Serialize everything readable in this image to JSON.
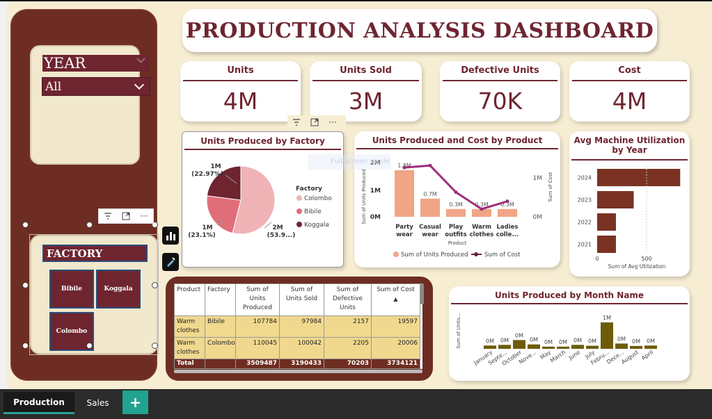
{
  "dashboard": {
    "title": "PRODUCTION ANALYSIS DASHBOARD"
  },
  "slicers": {
    "year": {
      "title": "YEAR",
      "selected": "All"
    },
    "factory": {
      "title": "FACTORY",
      "options": [
        "Bibile",
        "Koggala",
        "Colombo"
      ]
    }
  },
  "kpis": [
    {
      "label": "Units",
      "value": "4M"
    },
    {
      "label": "Units Sold",
      "value": "3M"
    },
    {
      "label": "Defective Units",
      "value": "70K"
    },
    {
      "label": "Cost",
      "value": "4M"
    }
  ],
  "toolbar_icons": [
    "filter-icon",
    "focus-mode-icon",
    "more-options-icon"
  ],
  "tooltip": {
    "fullscreen": "Full screen mode"
  },
  "pie": {
    "title": "Units Produced by Factory",
    "legend_title": "Factory",
    "labels": [
      {
        "text": "1M",
        "sub": "(22.97%)"
      },
      {
        "text": "1M",
        "sub": "(23.1%)"
      },
      {
        "text": "2M",
        "sub": "(53.9...)"
      }
    ]
  },
  "combo": {
    "title": "Units Produced and Cost by Product",
    "y_left_title": "Sum of Units Produced",
    "y_right_title": "Sum of Cost",
    "y_left_ticks": [
      "2M",
      "1M",
      "0M"
    ],
    "y_right_ticks": [
      "1M",
      "0M"
    ],
    "x_title": "Product",
    "legend": [
      "Sum of Units Produced",
      "Sum of Cost"
    ]
  },
  "util": {
    "title": "Avg Machine Utilization by Year",
    "x_title": "Sum of Avg Utilization",
    "x_ticks": [
      "0",
      "500"
    ]
  },
  "monthly": {
    "title": "Units Produced by Month Name",
    "y_title": "Sum of Units..."
  },
  "table": {
    "headers": [
      "Product",
      "Factory",
      "Sum of Units Produced",
      "Sum of Units Sold",
      "Sum of Defective Units",
      "Sum of Cost"
    ],
    "rows": [
      [
        "Warm clothes",
        "Bibile",
        "107784",
        "97984",
        "2157",
        "19597"
      ],
      [
        "Warm clothes",
        "Colombo",
        "110045",
        "100042",
        "2205",
        "20006"
      ]
    ],
    "total": [
      "Total",
      "",
      "3509487",
      "3190433",
      "70203",
      "3734121"
    ]
  },
  "tabs": {
    "production": "Production",
    "sales": "Sales",
    "add": "+"
  },
  "chart_data": [
    {
      "type": "pie",
      "title": "Units Produced by Factory",
      "legend_title": "Factory",
      "slices": [
        {
          "name": "Colombo",
          "value": 53.93,
          "label": "2M",
          "color": "#f0b3b6"
        },
        {
          "name": "Bibile",
          "value": 23.1,
          "label": "1M",
          "color": "#e06e78"
        },
        {
          "name": "Koggala",
          "value": 22.97,
          "label": "1M",
          "color": "#6e2530"
        }
      ]
    },
    {
      "type": "bar",
      "title": "Units Produced and Cost by Product",
      "categories": [
        "Party wear",
        "Casual wear",
        "Play outfits",
        "Warm clothes",
        "Ladies colle..."
      ],
      "series": [
        {
          "name": "Sum of Units Produced",
          "type": "bar",
          "values": [
            1.8,
            0.7,
            0.3,
            0.3,
            0.3
          ],
          "labels": [
            "1.8M",
            "0.7M",
            "0.3M",
            "0.3M",
            "0.3M"
          ],
          "color": "#f0a586"
        },
        {
          "name": "Sum of Cost",
          "type": "line",
          "values": [
            1.9,
            1.98,
            0.95,
            0.3,
            0.6
          ],
          "color": "#9c2f7a"
        }
      ],
      "xlabel": "Product",
      "ylabel": "Sum of Units Produced",
      "y2label": "Sum of Cost",
      "ylim": [
        0,
        2.2
      ]
    },
    {
      "type": "bar",
      "orientation": "horizontal",
      "title": "Avg Machine Utilization by Year",
      "categories": [
        "2024",
        "2023",
        "2022",
        "2021"
      ],
      "values": [
        840,
        370,
        190,
        190
      ],
      "xlabel": "Sum of Avg Utilization",
      "xlim": [
        0,
        1000
      ],
      "color": "#7a3322"
    },
    {
      "type": "bar",
      "title": "Units Produced by Month Name",
      "categories": [
        "January",
        "Septe...",
        "October",
        "Nove...",
        "May",
        "March",
        "June",
        "July",
        "Febru...",
        "Dece...",
        "August",
        "April"
      ],
      "values": [
        0.15,
        0.18,
        0.4,
        0.2,
        0.1,
        0.1,
        0.18,
        0.14,
        1.2,
        0.24,
        0.13,
        0.15
      ],
      "labels": [
        "0M",
        "0M",
        "0M",
        "0M",
        "0M",
        "0M",
        "0M",
        "0M",
        "1M",
        "0M",
        "0M",
        "0M"
      ],
      "ylabel": "Sum of Units...",
      "color": "#6e5c0a"
    }
  ]
}
